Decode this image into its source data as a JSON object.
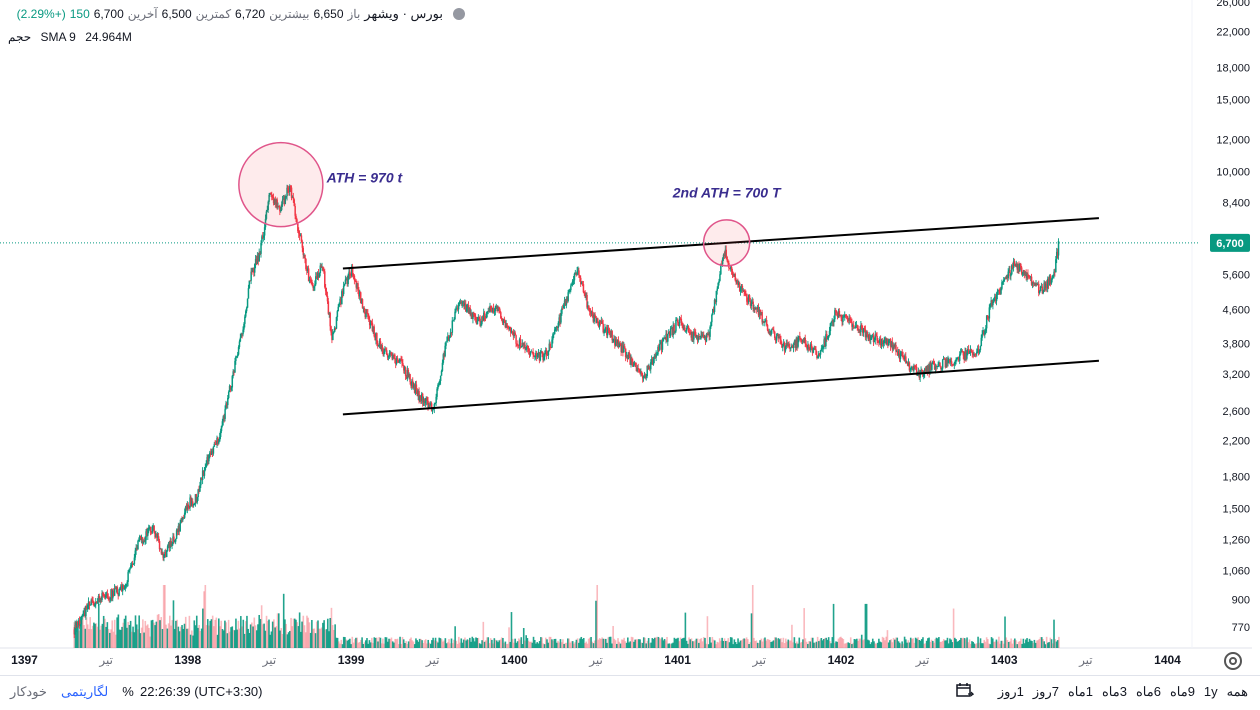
{
  "header": {
    "symbol": "بورس · ویشهر",
    "open_label": "باز",
    "open_value": "6,650",
    "high_label": "بیشترین",
    "high_value": "6,720",
    "low_label": "کمترین",
    "low_value": "6,500",
    "close_label": "آخرین",
    "close_value": "6,700",
    "change": "150",
    "change_pct": "(+2.29%)"
  },
  "volume_legend": {
    "label": "حجم",
    "sma": "SMA 9",
    "value": "24.964M"
  },
  "chart_data": {
    "type": "candlestick",
    "y_scale": "log",
    "ylim": [
      700,
      26000
    ],
    "y_ticks": [
      770,
      900,
      1060,
      1260,
      1500,
      1800,
      2200,
      2600,
      3200,
      3800,
      4600,
      5600,
      6700,
      8400,
      10000,
      12000,
      15000,
      18000,
      22000,
      26000
    ],
    "y_tick_labels": [
      "770",
      "900",
      "1,060",
      "1,260",
      "1,500",
      "1,800",
      "2,200",
      "2,600",
      "3,200",
      "3,800",
      "4,600",
      "5,600",
      "",
      "8,400",
      "10,000",
      "12,000",
      "15,000",
      "18,000",
      "22,000",
      "26,000"
    ],
    "last_price": 6700,
    "last_price_label": "6,700",
    "x_ticks": [
      {
        "t": 1397.0,
        "label": "1397"
      },
      {
        "t": 1397.5,
        "label": "تیر"
      },
      {
        "t": 1398.0,
        "label": "1398"
      },
      {
        "t": 1398.5,
        "label": "تیر"
      },
      {
        "t": 1399.0,
        "label": "1399"
      },
      {
        "t": 1399.5,
        "label": "تیر"
      },
      {
        "t": 1400.0,
        "label": "1400"
      },
      {
        "t": 1400.5,
        "label": "تیر"
      },
      {
        "t": 1401.0,
        "label": "1401"
      },
      {
        "t": 1401.5,
        "label": "تیر"
      },
      {
        "t": 1402.0,
        "label": "1402"
      },
      {
        "t": 1402.5,
        "label": "تیر"
      },
      {
        "t": 1403.0,
        "label": "1403"
      },
      {
        "t": 1403.5,
        "label": "تیر"
      },
      {
        "t": 1404.0,
        "label": "1404"
      }
    ],
    "price_path": [
      [
        1397.3,
        760
      ],
      [
        1397.4,
        880
      ],
      [
        1397.5,
        920
      ],
      [
        1397.6,
        950
      ],
      [
        1397.7,
        1250
      ],
      [
        1397.78,
        1340
      ],
      [
        1397.85,
        1150
      ],
      [
        1397.92,
        1280
      ],
      [
        1398.0,
        1540
      ],
      [
        1398.05,
        1600
      ],
      [
        1398.1,
        1900
      ],
      [
        1398.18,
        2200
      ],
      [
        1398.25,
        2900
      ],
      [
        1398.32,
        3900
      ],
      [
        1398.38,
        5500
      ],
      [
        1398.44,
        6400
      ],
      [
        1398.5,
        9000
      ],
      [
        1398.56,
        8000
      ],
      [
        1398.62,
        9300
      ],
      [
        1398.68,
        7000
      ],
      [
        1398.72,
        5800
      ],
      [
        1398.76,
        5200
      ],
      [
        1398.82,
        5900
      ],
      [
        1398.88,
        3900
      ],
      [
        1398.95,
        5200
      ],
      [
        1399.0,
        5800
      ],
      [
        1399.08,
        4500
      ],
      [
        1399.18,
        3700
      ],
      [
        1399.3,
        3400
      ],
      [
        1399.42,
        2800
      ],
      [
        1399.5,
        2650
      ],
      [
        1399.58,
        3800
      ],
      [
        1399.66,
        4800
      ],
      [
        1399.78,
        4300
      ],
      [
        1399.88,
        4700
      ],
      [
        1400.0,
        3900
      ],
      [
        1400.12,
        3500
      ],
      [
        1400.2,
        3600
      ],
      [
        1400.3,
        4700
      ],
      [
        1400.38,
        5800
      ],
      [
        1400.46,
        4500
      ],
      [
        1400.58,
        4000
      ],
      [
        1400.68,
        3600
      ],
      [
        1400.78,
        3100
      ],
      [
        1400.88,
        3700
      ],
      [
        1401.0,
        4300
      ],
      [
        1401.08,
        4000
      ],
      [
        1401.18,
        3900
      ],
      [
        1401.28,
        6400
      ],
      [
        1401.36,
        5300
      ],
      [
        1401.48,
        4600
      ],
      [
        1401.56,
        4100
      ],
      [
        1401.66,
        3700
      ],
      [
        1401.76,
        3900
      ],
      [
        1401.86,
        3500
      ],
      [
        1401.96,
        4500
      ],
      [
        1402.08,
        4200
      ],
      [
        1402.2,
        3900
      ],
      [
        1402.3,
        3800
      ],
      [
        1402.4,
        3400
      ],
      [
        1402.48,
        3200
      ],
      [
        1402.56,
        3350
      ],
      [
        1402.64,
        3400
      ],
      [
        1402.74,
        3550
      ],
      [
        1402.84,
        3700
      ],
      [
        1402.92,
        4800
      ],
      [
        1403.0,
        5400
      ],
      [
        1403.06,
        6000
      ],
      [
        1403.14,
        5500
      ],
      [
        1403.22,
        5100
      ],
      [
        1403.3,
        5600
      ],
      [
        1403.33,
        6700
      ]
    ],
    "volume_peaks": [
      {
        "t": 1397.05,
        "v": 0.85
      },
      {
        "t": 1397.45,
        "v": 0.7
      },
      {
        "t": 1397.85,
        "v": 1.0
      },
      {
        "t": 1398.1,
        "v": 0.9
      },
      {
        "t": 1398.55,
        "v": 0.55
      },
      {
        "t": 1400.5,
        "v": 0.75
      },
      {
        "t": 1401.45,
        "v": 0.55
      },
      {
        "t": 1401.95,
        "v": 0.7
      },
      {
        "t": 1402.15,
        "v": 0.7
      },
      {
        "t": 1403.0,
        "v": 0.5
      },
      {
        "t": 1403.3,
        "v": 0.45
      }
    ],
    "channel_upper": [
      [
        1398.95,
        5800
      ],
      [
        1403.58,
        7700
      ]
    ],
    "channel_lower": [
      [
        1398.95,
        2550
      ],
      [
        1403.58,
        3450
      ]
    ],
    "annotations": [
      {
        "text": "ATH = 970 t",
        "t": 1398.57,
        "price": 9400
      },
      {
        "text": "2nd ATH = 700 T",
        "t": 1401.3,
        "price": 7100
      }
    ],
    "colors": {
      "up": "#089981",
      "down": "#f23645",
      "line": "#000000",
      "circle": "#e0558a",
      "annotation": "#3a2d8f",
      "price_tag": "#089981"
    }
  },
  "footer": {
    "auto": "خودکار",
    "log": "لگاریتمی",
    "percent": "%",
    "timezone": "22:26:39 (UTC+3:30)",
    "ranges": [
      "همه",
      "1y",
      "9ماه",
      "6ماه",
      "3ماه",
      "1ماه",
      "7روز",
      "1روز"
    ]
  }
}
